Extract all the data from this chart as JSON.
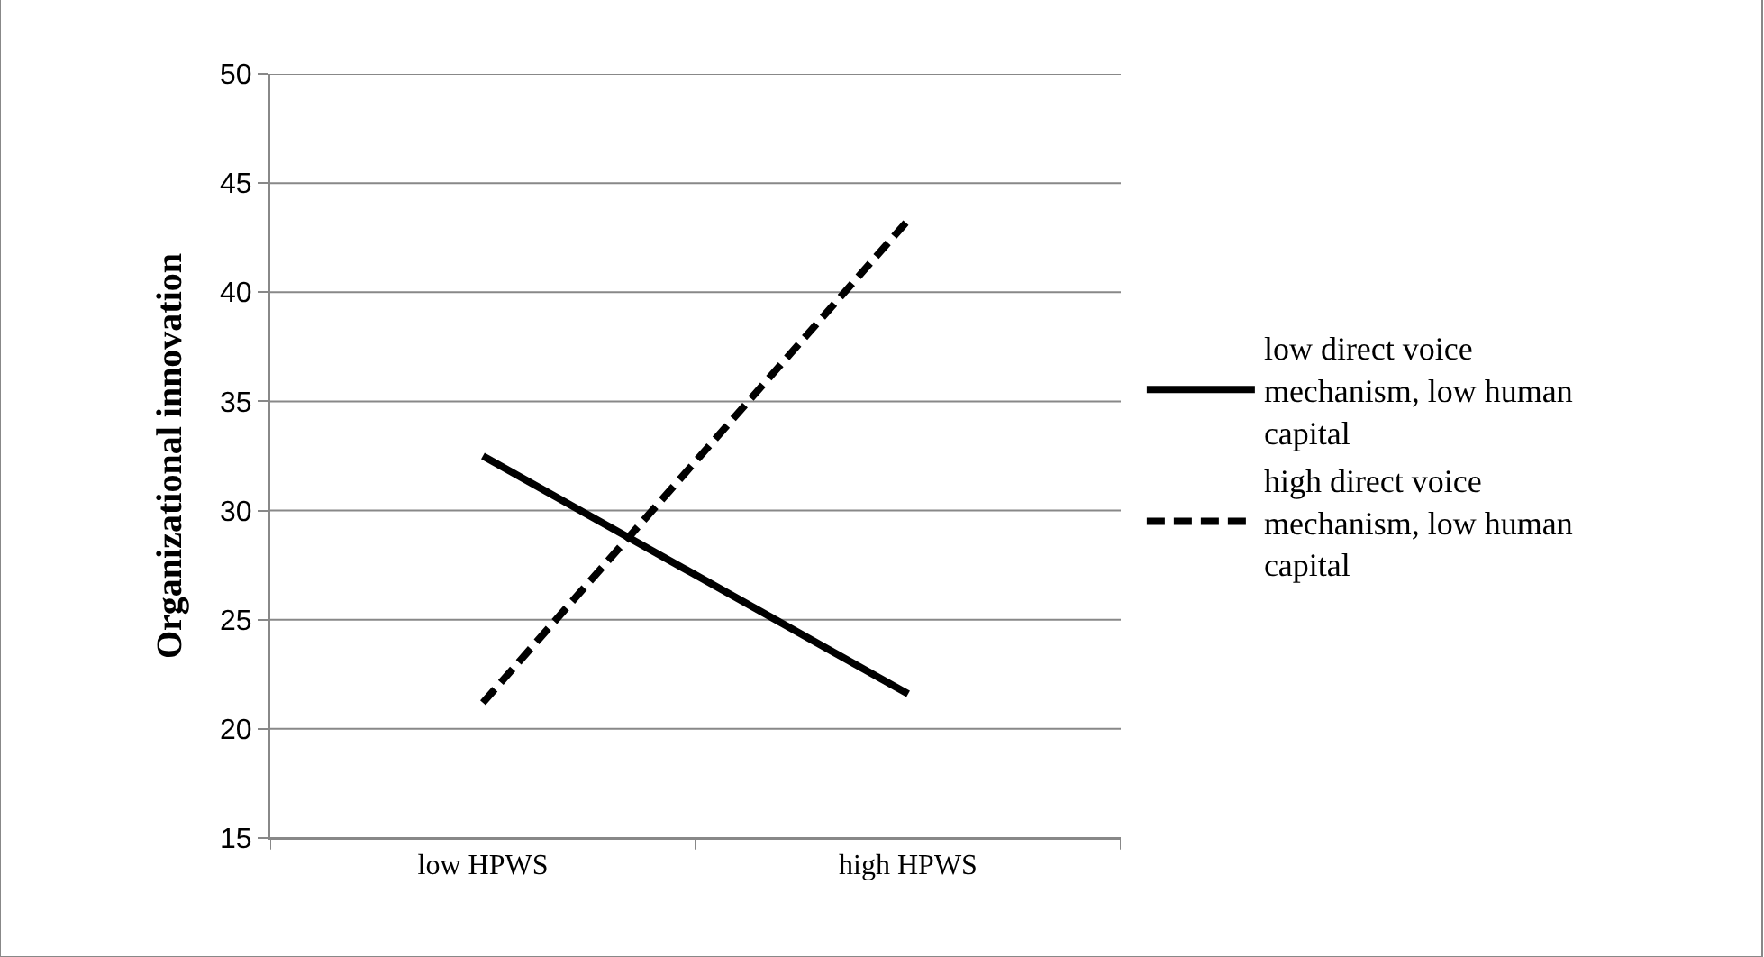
{
  "chart_data": {
    "type": "line",
    "ylabel": "Organizational innovation",
    "categories": [
      "low HPWS",
      "high HPWS"
    ],
    "series": [
      {
        "name": "low direct voice mechanism, low human capital",
        "color": "#000000",
        "line_style": "solid",
        "values": [
          32.5,
          21.6
        ]
      },
      {
        "name": "high direct voice mechanism, low human capital",
        "color": "#000000",
        "line_style": "dashed",
        "values": [
          21.2,
          43.3
        ]
      }
    ],
    "ylim": [
      15,
      50
    ],
    "yticks": [
      15,
      20,
      25,
      30,
      35,
      40,
      45,
      50
    ],
    "grid": "y",
    "legend": "right",
    "marker": "none"
  }
}
